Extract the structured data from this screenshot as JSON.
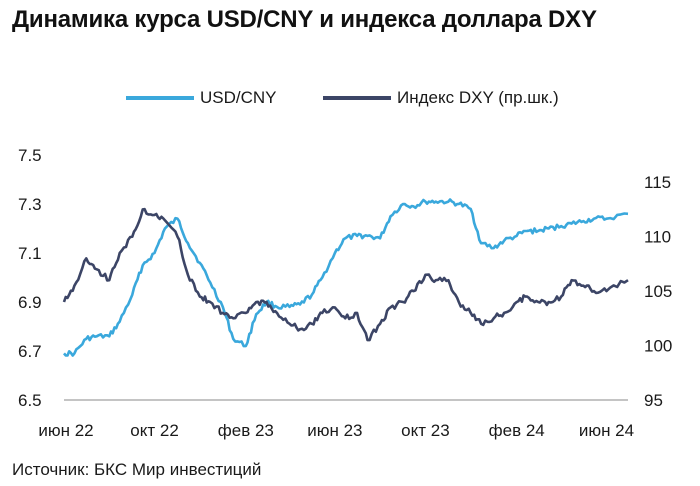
{
  "title": "Динамика курса USD/CNY и индекса доллара DXY",
  "source": "Источник: БКС Мир инвестиций",
  "colors": {
    "usdcny": "#3aa8dc",
    "dxy": "#3c4566",
    "axis": "#8a8a8a"
  },
  "chart_data": {
    "type": "line",
    "title": "Динамика курса USD/CNY и индекса доллара DXY",
    "x_tick_labels": [
      "июн 22",
      "окт 22",
      "фев 23",
      "июн 23",
      "окт 23",
      "фев 24",
      "июн 24"
    ],
    "x_range": [
      "2022-06-01",
      "2024-06-30"
    ],
    "y_left": {
      "label": "",
      "ticks": [
        "7.5",
        "7.3",
        "7.1",
        "6.9",
        "6.7",
        "6.5"
      ],
      "lim": [
        6.5,
        7.5
      ]
    },
    "y_right": {
      "label": "",
      "ticks": [
        "115",
        "110",
        "105",
        "100",
        "95"
      ],
      "lim": [
        95,
        117.5
      ]
    },
    "grid": false,
    "legend_position": "top",
    "series": [
      {
        "name": "USD/CNY",
        "axis": "left",
        "x": [
          "2022-06-01",
          "2022-06-15",
          "2022-07-01",
          "2022-07-15",
          "2022-08-01",
          "2022-08-15",
          "2022-09-01",
          "2022-09-15",
          "2022-10-01",
          "2022-10-15",
          "2022-11-01",
          "2022-11-15",
          "2022-12-01",
          "2022-12-15",
          "2023-01-01",
          "2023-01-15",
          "2023-02-01",
          "2023-02-15",
          "2023-03-01",
          "2023-03-15",
          "2023-04-01",
          "2023-04-15",
          "2023-05-01",
          "2023-05-15",
          "2023-06-01",
          "2023-06-15",
          "2023-07-01",
          "2023-07-15",
          "2023-08-01",
          "2023-08-15",
          "2023-09-01",
          "2023-09-15",
          "2023-10-01",
          "2023-10-15",
          "2023-11-01",
          "2023-11-15",
          "2023-12-01",
          "2023-12-15",
          "2024-01-01",
          "2024-01-15",
          "2024-02-01",
          "2024-02-15",
          "2024-03-01",
          "2024-03-15",
          "2024-04-01",
          "2024-04-15",
          "2024-05-01",
          "2024-05-15",
          "2024-06-01",
          "2024-06-30"
        ],
        "values": [
          6.69,
          6.69,
          6.75,
          6.76,
          6.76,
          6.82,
          6.93,
          7.05,
          7.1,
          7.2,
          7.24,
          7.14,
          7.06,
          6.98,
          6.88,
          6.75,
          6.72,
          6.85,
          6.9,
          6.88,
          6.88,
          6.89,
          6.93,
          7.0,
          7.1,
          7.16,
          7.17,
          7.17,
          7.16,
          7.25,
          7.3,
          7.29,
          7.31,
          7.31,
          7.31,
          7.3,
          7.28,
          7.14,
          7.12,
          7.15,
          7.17,
          7.19,
          7.19,
          7.2,
          7.21,
          7.22,
          7.23,
          7.24,
          7.24,
          7.26
        ]
      },
      {
        "name": "Индекс DXY (пр.шк.)",
        "axis": "right",
        "x": [
          "2022-06-01",
          "2022-06-15",
          "2022-07-01",
          "2022-07-15",
          "2022-08-01",
          "2022-08-15",
          "2022-09-01",
          "2022-09-15",
          "2022-10-01",
          "2022-10-15",
          "2022-11-01",
          "2022-11-15",
          "2022-12-01",
          "2022-12-15",
          "2023-01-01",
          "2023-01-15",
          "2023-02-01",
          "2023-02-15",
          "2023-03-01",
          "2023-03-15",
          "2023-04-01",
          "2023-04-15",
          "2023-05-01",
          "2023-05-15",
          "2023-06-01",
          "2023-06-15",
          "2023-07-01",
          "2023-07-15",
          "2023-08-01",
          "2023-08-15",
          "2023-09-01",
          "2023-09-15",
          "2023-10-01",
          "2023-10-15",
          "2023-11-01",
          "2023-11-15",
          "2023-12-01",
          "2023-12-15",
          "2024-01-01",
          "2024-01-15",
          "2024-02-01",
          "2024-02-15",
          "2024-03-01",
          "2024-03-15",
          "2024-04-01",
          "2024-04-15",
          "2024-05-01",
          "2024-05-15",
          "2024-06-01",
          "2024-06-30"
        ],
        "values": [
          104.0,
          105.5,
          108.0,
          107.0,
          106.0,
          108.5,
          110.0,
          112.5,
          112.0,
          111.5,
          110.0,
          106.5,
          104.5,
          104.0,
          103.0,
          102.5,
          103.0,
          104.0,
          104.0,
          103.0,
          102.0,
          101.5,
          102.0,
          103.0,
          103.5,
          102.5,
          103.0,
          100.5,
          102.0,
          103.5,
          104.0,
          105.0,
          106.5,
          106.0,
          106.0,
          104.0,
          103.0,
          102.0,
          102.5,
          103.0,
          104.0,
          104.5,
          104.0,
          104.0,
          104.5,
          106.0,
          105.5,
          105.0,
          105.0,
          106.0
        ]
      }
    ]
  }
}
